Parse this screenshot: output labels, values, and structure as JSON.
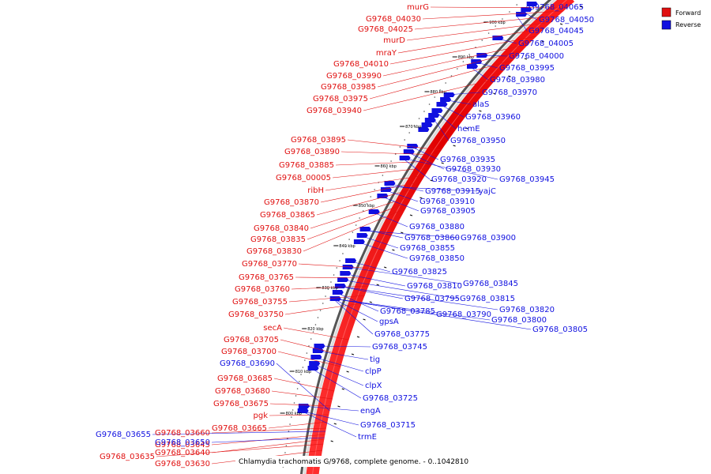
{
  "legend": {
    "forward": {
      "label": "Forward",
      "color": "#e01010"
    },
    "reverse": {
      "label": "Reverse",
      "color": "#1010e0"
    }
  },
  "caption": "Chlamydia trachomatis G/9768, complete genome. - 0..1042810",
  "ticks": [
    "900 kbp",
    "890 kbp",
    "880 kbp",
    "870 kbp",
    "860 kbp",
    "850 kbp",
    "840 kbp",
    "830 kbp",
    "820 kbp",
    "810 kbp",
    "800 kbp"
  ],
  "forward_labels": [
    "murG",
    "G9768_04030",
    "G9768_04025",
    "murD",
    "mraY",
    "G9768_04010",
    "G9768_03990",
    "G9768_03985",
    "G9768_03975",
    "G9768_03940",
    "G9768_03895",
    "G9768_03890",
    "G9768_03885",
    "G9768_00005",
    "ribH",
    "G9768_03870",
    "G9768_03865",
    "G9768_03840",
    "G9768_03835",
    "G9768_03830",
    "G9768_03770",
    "G9768_03765",
    "G9768_03760",
    "G9768_03755",
    "G9768_03750",
    "secA",
    "G9768_03705",
    "G9768_03700",
    "G9768_03685",
    "G9768_03680",
    "G9768_03675",
    "pgk",
    "G9768_03665",
    "G9768_03660",
    "G9768_03645",
    "G9768_03640",
    "G9768_03635",
    "G9768_03630"
  ],
  "reverse_right_labels": [
    "G9768_04065",
    "G9768_04050",
    "G9768_04045",
    "G9768_04005",
    "G9768_04000",
    "G9768_03995",
    "G9768_03980",
    "G9768_03970",
    "alaS",
    "G9768_03960",
    "hemE",
    "G9768_03950",
    "G9768_03935",
    "G9768_03930",
    "G9768_03945",
    "G9768_03920",
    "G9768_03915",
    "yajC",
    "G9768_03910",
    "G9768_03905",
    "G9768_03880",
    "G9768_03860",
    "G9768_03900",
    "G9768_03855",
    "G9768_03850",
    "G9768_03825",
    "G9768_03845",
    "G9768_03810",
    "G9768_03815",
    "G9768_03795",
    "G9768_03820",
    "G9768_03785",
    "G9768_03790",
    "G9768_03800",
    "gpsA",
    "G9768_03805",
    "G9768_03775",
    "G9768_03745",
    "tig",
    "clpP",
    "clpX",
    "G9768_03725",
    "engA",
    "G9768_03715",
    "trmE"
  ],
  "reverse_left_labels": [
    "G9768_03690",
    "G9768_03655",
    "G9768_03650"
  ]
}
